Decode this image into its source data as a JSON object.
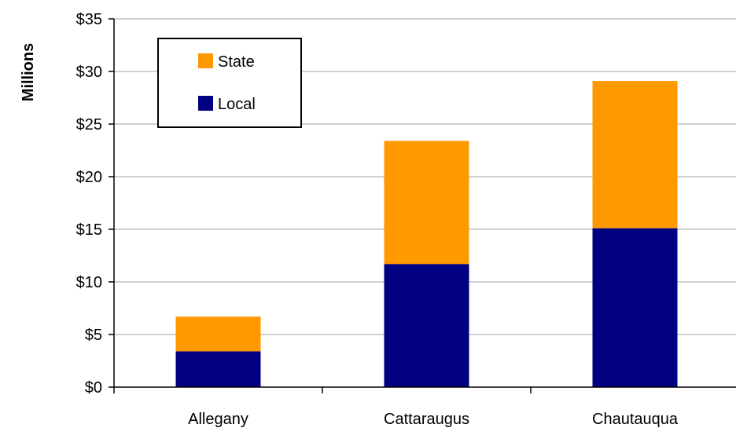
{
  "chart_data": {
    "type": "bar",
    "stacked": true,
    "categories": [
      "Allegany",
      "Cattaraugus",
      "Chautauqua"
    ],
    "series": [
      {
        "name": "Local",
        "values": [
          3.4,
          11.7,
          15.1
        ],
        "color": "#000080"
      },
      {
        "name": "State",
        "values": [
          3.3,
          11.7,
          14.0
        ],
        "color": "#ff9900"
      }
    ],
    "ylabel": "Millions",
    "xlabel": "",
    "ylim": [
      0,
      35
    ],
    "yticks": [
      0,
      5,
      10,
      15,
      20,
      25,
      30,
      35
    ],
    "ytick_labels": [
      "$0",
      "$5",
      "$10",
      "$15",
      "$20",
      "$25",
      "$30",
      "$35"
    ],
    "grid": true,
    "legend": {
      "position": "top-left",
      "entries": [
        {
          "label": "State",
          "color": "#ff9900"
        },
        {
          "label": "Local",
          "color": "#000080"
        }
      ]
    }
  }
}
